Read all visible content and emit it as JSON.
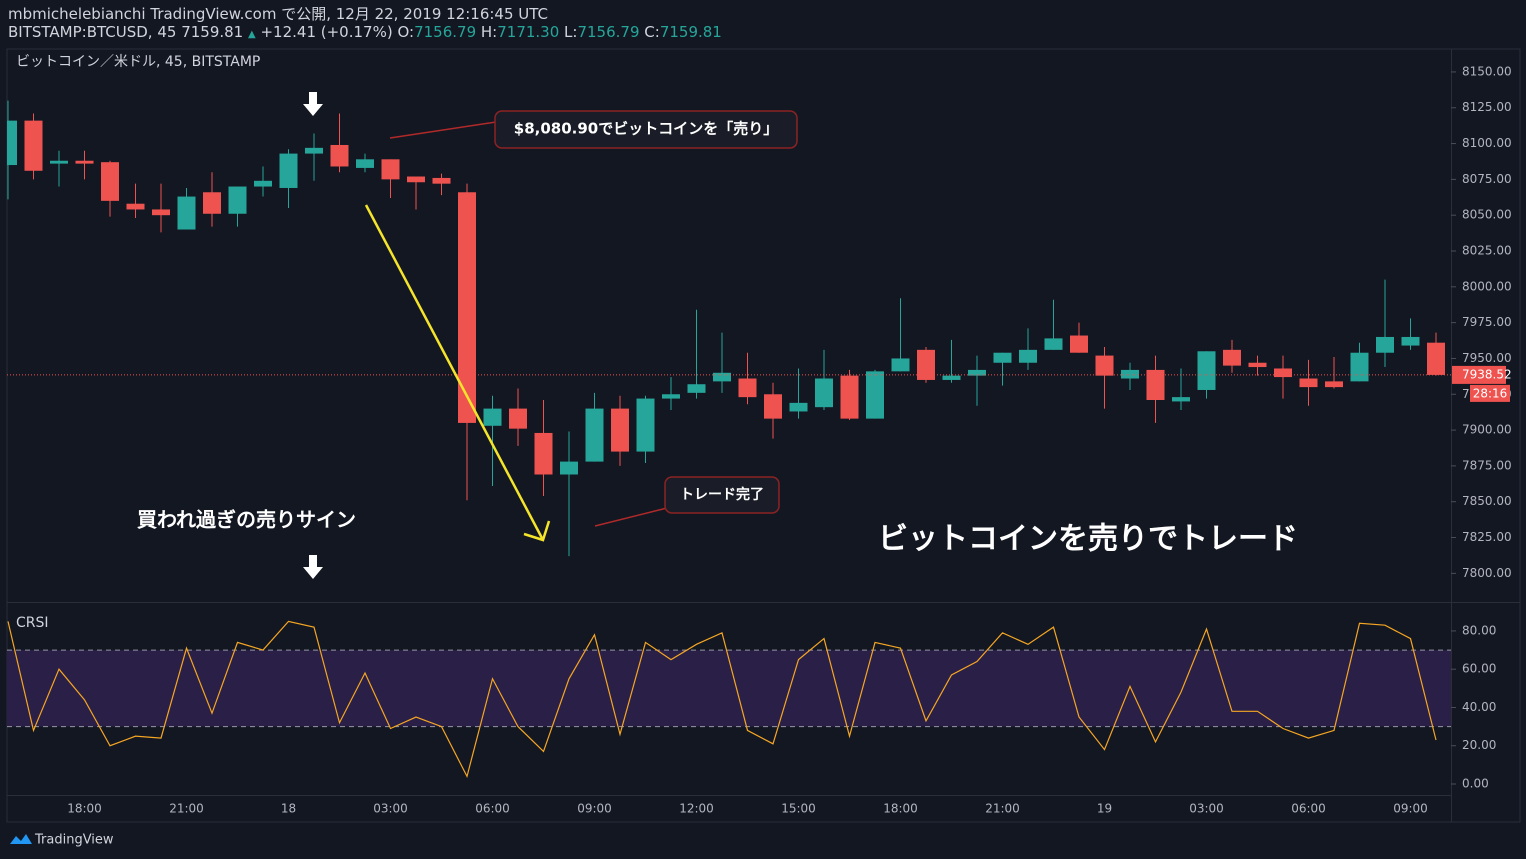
{
  "header": {
    "publisher": "mbmichelebianchi TradingView.com で公開, 12月 22, 2019 12:16:45 UTC",
    "symbol": "BITSTAMP:BTCUSD, 45 7159.81",
    "arrow": "▲",
    "change": "+12.41 (+0.17%)",
    "ohlc": [
      {
        "label": "O:",
        "value": "7156.79"
      },
      {
        "label": "H:",
        "value": "7171.30"
      },
      {
        "label": "L:",
        "value": "7156.79"
      },
      {
        "label": "C:",
        "value": "7159.81"
      }
    ]
  },
  "footer": {
    "brand": "TradingView"
  },
  "chart_data": [
    {
      "type": "candlestick",
      "title": "ビットコイン／米ドル, 45, BITSTAMP",
      "annotations": [
        "$8,080.90でビットコインを「売り」",
        "トレード完了",
        "買われ過ぎの売りサイン",
        "ビットコインを売りでトレード"
      ],
      "categories": [
        null,
        null,
        null,
        "18:00",
        null,
        null,
        null,
        "21:00",
        null,
        null,
        null,
        "18",
        null,
        null,
        null,
        "03:00",
        null,
        null,
        null,
        "06:00",
        null,
        null,
        null,
        "09:00",
        null,
        null,
        null,
        "12:00",
        null,
        null,
        null,
        "15:00",
        null,
        null,
        null,
        "18:00",
        null,
        null,
        null,
        "21:00",
        null,
        null,
        null,
        "19",
        null,
        null,
        null,
        "03:00",
        null,
        null,
        null,
        "06:00",
        null,
        null,
        null,
        "09:00",
        null
      ],
      "open": [
        8085,
        8116,
        8086,
        8088,
        8087,
        8058,
        8054,
        8040,
        8066,
        8051,
        8070,
        8069,
        8093,
        8099,
        8083,
        8089,
        8077,
        8076,
        8066,
        7903,
        7915,
        7898,
        7869,
        7878,
        7915,
        7885,
        7922,
        7926,
        7934,
        7936,
        7925,
        7913,
        7916,
        7938,
        7908,
        7941,
        7956,
        7935,
        7938,
        7947,
        7947,
        7956,
        7966,
        7952,
        7936,
        7942,
        7920,
        7928,
        7956,
        7947,
        7943,
        7936,
        7934,
        7934,
        7954,
        7959,
        7961
      ],
      "high": [
        8130,
        8121,
        8095,
        8095,
        8088,
        8072,
        8072,
        8069,
        8080,
        8070,
        8084,
        8096,
        8107,
        8121,
        8093,
        8089,
        8077,
        8079,
        8072,
        7924,
        7929,
        7921,
        7899,
        7926,
        7924,
        7924,
        7937,
        7984,
        7968,
        7954,
        7933,
        7943,
        7956,
        7942,
        7942,
        7992,
        7958,
        7963,
        7952,
        7954,
        7971,
        7991,
        7975,
        7958,
        7947,
        7952,
        7943,
        7955,
        7963,
        7952,
        7952,
        7949,
        7951,
        7961,
        8005,
        7978,
        7968
      ],
      "low": [
        8061,
        8075,
        8070,
        8075,
        8049,
        8048,
        8038,
        8040,
        8042,
        8042,
        8063,
        8055,
        8074,
        8080,
        8080,
        8062,
        8054,
        8064,
        7851,
        7861,
        7889,
        7854,
        7812,
        7878,
        7875,
        7877,
        7914,
        7922,
        7926,
        7918,
        7894,
        7908,
        7914,
        7907,
        7908,
        7941,
        7933,
        7933,
        7917,
        7931,
        7942,
        7956,
        7954,
        7915,
        7928,
        7905,
        7914,
        7922,
        7940,
        7938,
        7922,
        7917,
        7929,
        7934,
        7944,
        7956,
        7938
      ],
      "close": [
        8116,
        8081,
        8088,
        8086,
        8060,
        8054,
        8050,
        8063,
        8051,
        8070,
        8074,
        8093,
        8097,
        8084,
        8089,
        8075,
        8073,
        8072,
        7905,
        7915,
        7901,
        7869,
        7878,
        7915,
        7885,
        7922,
        7925,
        7932,
        7940,
        7923,
        7908,
        7919,
        7936,
        7908,
        7941,
        7950,
        7935,
        7938,
        7942,
        7954,
        7956,
        7964,
        7954,
        7938,
        7942,
        7921,
        7923,
        7955,
        7945,
        7944,
        7937,
        7930,
        7930,
        7954,
        7965,
        7965,
        7938.52
      ],
      "up_color": "#26a69a",
      "down_color": "#ef5350",
      "last_price": 7938.52,
      "countdown": "28:16",
      "ylim": [
        7780,
        8166
      ],
      "yticks": [
        {
          "value": 7800,
          "label": "7800.00"
        },
        {
          "value": 7825,
          "label": "7825.00"
        },
        {
          "value": 7850,
          "label": "7850.00"
        },
        {
          "value": 7875,
          "label": "7875.00"
        },
        {
          "value": 7900,
          "label": "7900.00"
        },
        {
          "value": 7925,
          "label": "7925.00"
        },
        {
          "value": 7950,
          "label": "7950.00"
        },
        {
          "value": 7975,
          "label": "7975.00"
        },
        {
          "value": 8000,
          "label": "8000.00"
        },
        {
          "value": 8025,
          "label": "8025.00"
        },
        {
          "value": 8050,
          "label": "8050.00"
        },
        {
          "value": 8075,
          "label": "8075.00"
        },
        {
          "value": 8100,
          "label": "8100.00"
        },
        {
          "value": 8125,
          "label": "8125.00"
        },
        {
          "value": 8150,
          "label": "8150.00"
        }
      ]
    },
    {
      "type": "line",
      "title": "CRSI",
      "color": "#f5a623",
      "values": [
        85,
        28,
        60,
        44,
        20,
        25,
        24,
        71,
        37,
        74,
        70,
        85,
        82,
        32,
        58,
        29,
        35,
        30,
        4,
        55,
        30,
        17,
        55,
        78,
        26,
        74,
        65,
        73,
        79,
        28,
        21,
        65,
        76,
        25,
        74,
        71,
        33,
        57,
        64,
        79,
        73,
        82,
        35,
        18,
        51,
        22,
        48,
        81,
        38,
        38,
        29,
        24,
        28,
        84,
        83,
        76,
        23
      ],
      "bands": [
        30,
        70
      ],
      "band_color": "#2a1f46",
      "ylim": [
        -5.75,
        94.6
      ],
      "yticks": [
        {
          "value": 0,
          "label": "0.00"
        },
        {
          "value": 20,
          "label": "20.00"
        },
        {
          "value": 40,
          "label": "40.00"
        },
        {
          "value": 60,
          "label": "60.00"
        },
        {
          "value": 80,
          "label": "80.00"
        }
      ]
    }
  ]
}
